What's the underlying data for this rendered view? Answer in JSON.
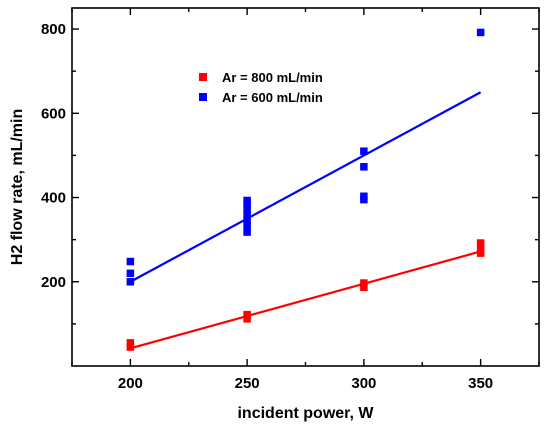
{
  "chart_data": {
    "type": "scatter",
    "xlabel": "incident power, W",
    "ylabel": "H2 flow rate, mL/min",
    "xlim": [
      175,
      375
    ],
    "ylim": [
      0,
      850
    ],
    "xticks": [
      200,
      250,
      300,
      350
    ],
    "yticks": [
      200,
      400,
      600,
      800
    ],
    "grid": false,
    "legend_position": "top-center",
    "series": [
      {
        "name": "Ar = 800 mL/min",
        "color": "#ff0000",
        "marker": "square",
        "points": [
          [
            200,
            45
          ],
          [
            200,
            55
          ],
          [
            250,
            112
          ],
          [
            250,
            122
          ],
          [
            300,
            187
          ],
          [
            300,
            197
          ],
          [
            350,
            268
          ],
          [
            350,
            280
          ],
          [
            350,
            292
          ]
        ],
        "fit": [
          [
            200,
            42
          ],
          [
            350,
            272
          ]
        ]
      },
      {
        "name": "Ar = 600 mL/min",
        "color": "#0000ff",
        "marker": "square",
        "points": [
          [
            200,
            200
          ],
          [
            200,
            220
          ],
          [
            200,
            248
          ],
          [
            250,
            318
          ],
          [
            250,
            332
          ],
          [
            250,
            345
          ],
          [
            250,
            360
          ],
          [
            250,
            372
          ],
          [
            250,
            383
          ],
          [
            250,
            393
          ],
          [
            300,
            395
          ],
          [
            300,
            403
          ],
          [
            300,
            473
          ],
          [
            300,
            510
          ],
          [
            350,
            792
          ]
        ],
        "fit": [
          [
            200,
            200
          ],
          [
            350,
            650
          ]
        ]
      }
    ]
  }
}
